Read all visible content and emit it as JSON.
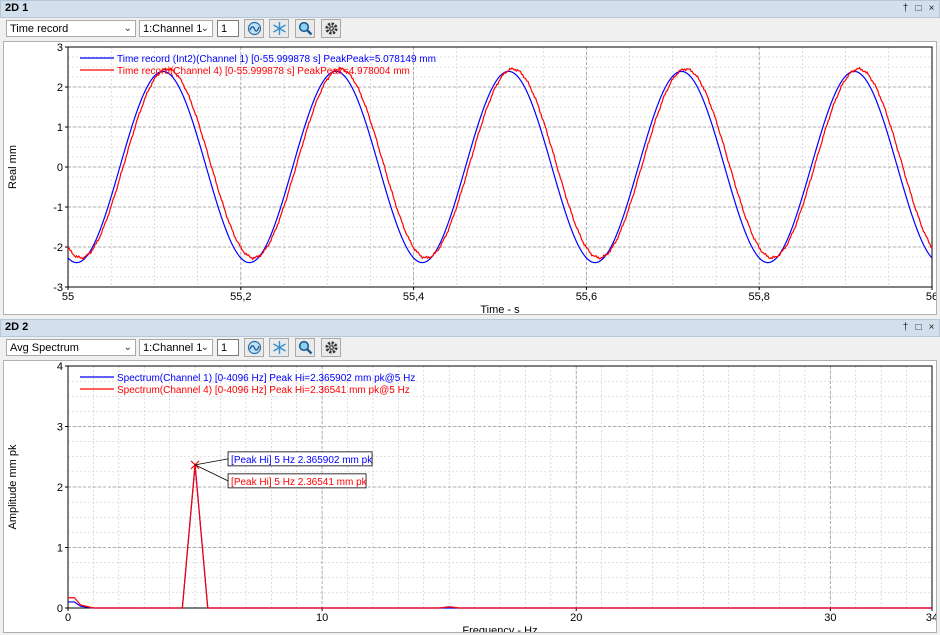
{
  "panel1": {
    "title": "2D 1",
    "window_controls": [
      "†",
      "□",
      "×"
    ],
    "mode_select": "Time record",
    "channel_select": "1:Channel 1",
    "channel_num": "1",
    "toolbar_icons": [
      "graph-icon",
      "snowflake-icon",
      "zoom-icon",
      "gear-icon"
    ],
    "legend": [
      {
        "text": "Time record (Int2)(Channel 1) [0-55.999878 s] PeakPeak=5.078149 mm",
        "color": "#0000ff"
      },
      {
        "text": "Time record(Channel 4) [0-55.999878 s] PeakPeak=4.978004 mm",
        "color": "#ff0000"
      }
    ],
    "chart_data": {
      "type": "line",
      "xlabel": "Time - s",
      "ylabel": "Real mm",
      "xlim": [
        55,
        56
      ],
      "ylim": [
        -3,
        3
      ],
      "x_ticks": [
        "55",
        "55,2",
        "55,4",
        "55,6",
        "55,8",
        "56"
      ],
      "y_ticks": [
        "3",
        "2",
        "1",
        "0",
        "-1",
        "-2",
        "-3"
      ],
      "grid": true,
      "legend_position": "top-left",
      "series": [
        {
          "color": "#0000ff",
          "waveform": "sine",
          "frequency_hz": 5,
          "amplitude": 2.39,
          "peak_time": 55.11
        },
        {
          "color": "#ff0000",
          "waveform": "sine",
          "frequency_hz": 5,
          "amplitude": 2.36,
          "offset": 0.09,
          "peak_time": 55.115
        }
      ]
    }
  },
  "panel2": {
    "title": "2D 2",
    "window_controls": [
      "†",
      "□",
      "×"
    ],
    "mode_select": "Avg Spectrum",
    "channel_select": "1:Channel 1",
    "channel_num": "1",
    "legend": [
      {
        "text": "Spectrum(Channel 1) [0-4096 Hz] Peak Hi=2.365902 mm pk@5 Hz",
        "color": "#0000ff"
      },
      {
        "text": "Spectrum(Channel 4) [0-4096 Hz] Peak Hi=2.36541 mm pk@5 Hz",
        "color": "#ff0000"
      }
    ],
    "annotations": [
      {
        "text": "[Peak Hi] 5 Hz 2.365902 mm pk",
        "color": "#0000ff"
      },
      {
        "text": "[Peak Hi] 5 Hz 2.36541 mm pk",
        "color": "#ff0000"
      }
    ],
    "chart_data": {
      "type": "line",
      "xlabel": "Frequency - Hz",
      "ylabel": "Amplitude mm pk",
      "xlim": [
        0,
        34
      ],
      "ylim": [
        0,
        4
      ],
      "x_ticks": [
        "0",
        "10",
        "20",
        "30",
        "34"
      ],
      "y_ticks": [
        "4",
        "3",
        "2",
        "1",
        "0"
      ],
      "grid": true,
      "legend_position": "top-left",
      "series": [
        {
          "color": "#0000ff",
          "x": [
            0,
            0.25,
            0.5,
            1,
            4.5,
            5,
            5.5,
            34
          ],
          "y": [
            0.1,
            0.1,
            0.03,
            0,
            0,
            2.365902,
            0,
            0
          ]
        },
        {
          "color": "#ff0000",
          "x": [
            0,
            0.25,
            0.5,
            1,
            4.5,
            5,
            5.5,
            14.6,
            15,
            15.4,
            34
          ],
          "y": [
            0.17,
            0.17,
            0.05,
            0,
            0,
            2.36541,
            0,
            0,
            0.02,
            0,
            0
          ]
        }
      ],
      "peak_marker": {
        "x": 5,
        "y": 2.365902
      }
    }
  }
}
